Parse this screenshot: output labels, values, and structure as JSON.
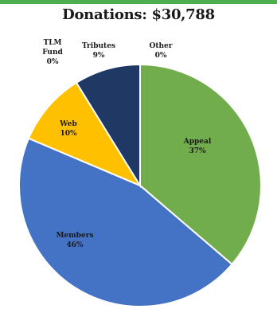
{
  "header": {
    "title": "Donations: $30,788"
  },
  "colors": {
    "accent_bar": "#4cae4f",
    "appeal": "#72ad4d",
    "members": "#4472c4",
    "web": "#ffc000",
    "tributes": "#1f3864",
    "memorial": "#264478",
    "other": "#a5a5a5"
  },
  "chart_data": {
    "type": "pie",
    "title": "Donations: $30,788",
    "slices": [
      {
        "name": "Appeal",
        "value": 37,
        "label": "37%",
        "color": "#72ad4d"
      },
      {
        "name": "Members",
        "value": 46,
        "label": "46%",
        "color": "#4472c4"
      },
      {
        "name": "Web",
        "value": 10,
        "label": "10%",
        "color": "#ffc000"
      },
      {
        "name": "TLM Fund",
        "value": 0,
        "label": "0%",
        "color": "#264478"
      },
      {
        "name": "Tributes",
        "value": 9,
        "label": "9%",
        "color": "#1f3864"
      },
      {
        "name": "Other",
        "value": 0,
        "label": "0%",
        "color": "#a5a5a5"
      }
    ]
  }
}
